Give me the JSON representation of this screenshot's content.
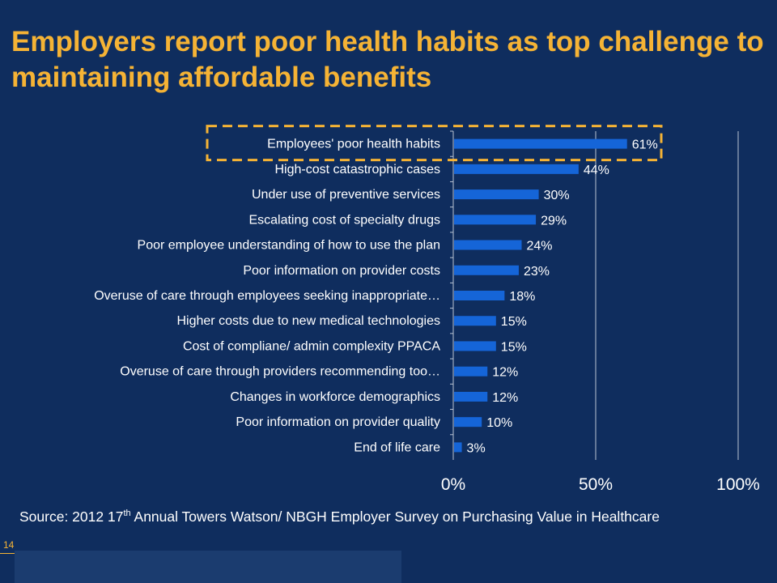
{
  "title": "Employers report poor health habits as top challenge to maintaining affordable benefits",
  "source": {
    "prefix": "Source:  2012 17",
    "sup": "th",
    "suffix": " Annual Towers Watson/ NBGH Employer Survey on Purchasing Value in Healthcare"
  },
  "page_number": "14",
  "colors": {
    "bar": "#1565d8",
    "highlight": "#f5b335",
    "background": "#0f2d5e",
    "text": "#ffffff"
  },
  "chart_data": {
    "type": "bar",
    "orientation": "horizontal",
    "categories": [
      "Employees' poor health habits",
      "High-cost catastrophic cases",
      "Under use of preventive services",
      "Escalating cost of specialty drugs",
      "Poor employee understanding of how to use the plan",
      "Poor information on provider costs",
      "Overuse of care through employees seeking inappropriate…",
      "Higher costs due to new medical technologies",
      "Cost of compliane/ admin complexity PPACA",
      "Overuse of care through providers recommending too…",
      "Changes in workforce demographics",
      "Poor information on provider quality",
      "End of life care"
    ],
    "values": [
      61,
      44,
      30,
      29,
      24,
      23,
      18,
      15,
      15,
      12,
      12,
      10,
      3
    ],
    "value_labels": [
      "61%",
      "44%",
      "30%",
      "29%",
      "24%",
      "23%",
      "18%",
      "15%",
      "15%",
      "12%",
      "12%",
      "10%",
      "3%"
    ],
    "xlim": [
      0,
      100
    ],
    "xticks": [
      0,
      50,
      100
    ],
    "xtick_labels": [
      "0%",
      "50%",
      "100%"
    ],
    "grid": "vertical",
    "highlighted_category": "Employees' poor health habits"
  }
}
